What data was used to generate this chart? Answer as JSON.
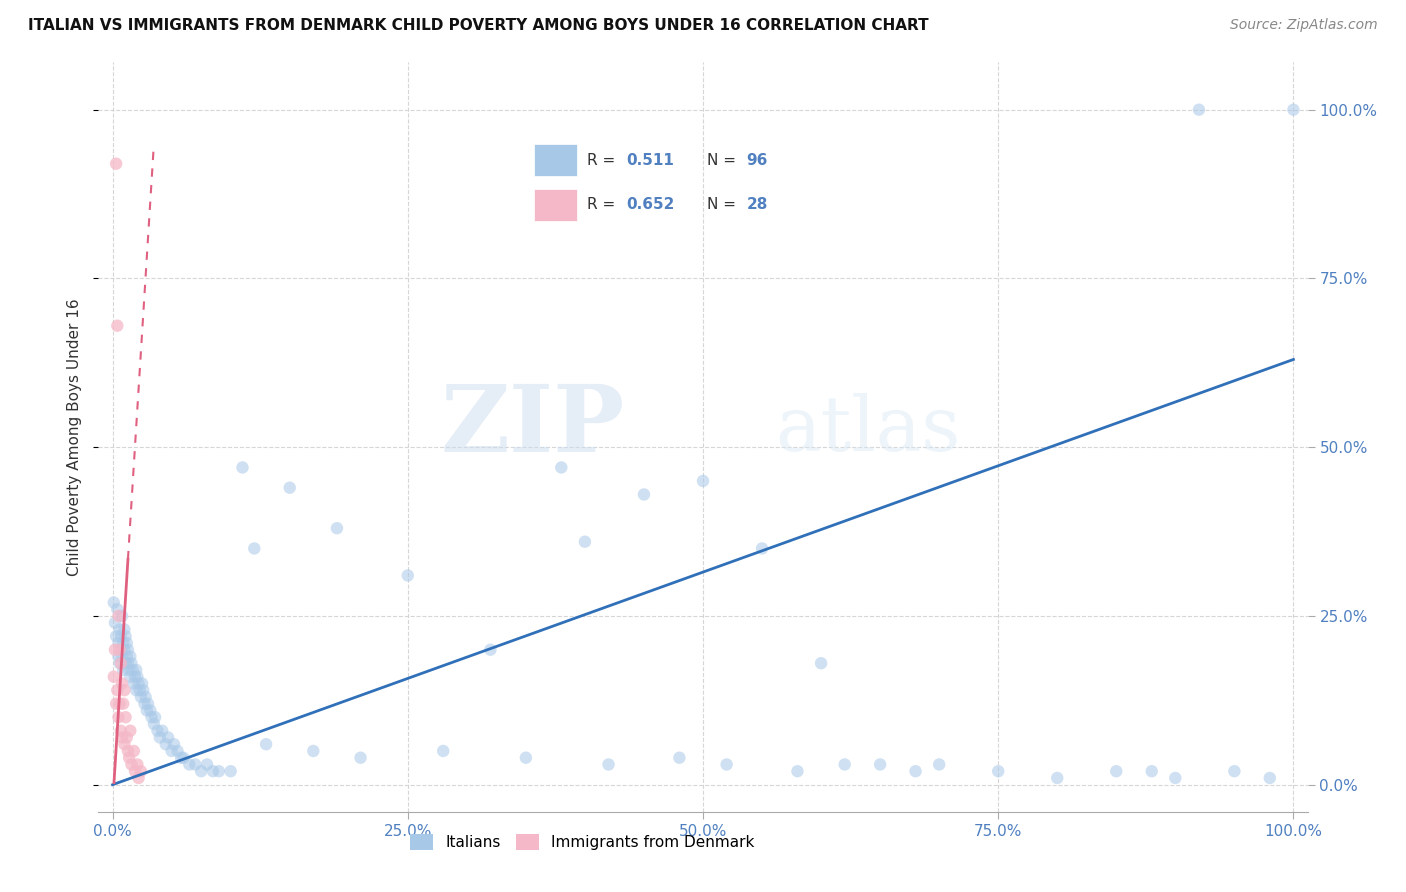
{
  "title": "ITALIAN VS IMMIGRANTS FROM DENMARK CHILD POVERTY AMONG BOYS UNDER 16 CORRELATION CHART",
  "source": "Source: ZipAtlas.com",
  "ylabel": "Child Poverty Among Boys Under 16",
  "r_italian": 0.511,
  "n_italian": 96,
  "r_denmark": 0.652,
  "n_denmark": 28,
  "xticks": [
    0.0,
    0.25,
    0.5,
    0.75,
    1.0
  ],
  "yticks": [
    0.0,
    0.25,
    0.5,
    0.75,
    1.0
  ],
  "xticklabels": [
    "0.0%",
    "25.0%",
    "50.0%",
    "75.0%",
    "100.0%"
  ],
  "yticklabels": [
    "0.0%",
    "25.0%",
    "50.0%",
    "75.0%",
    "100.0%"
  ],
  "color_italian": "#a8c8e8",
  "color_denmark": "#f4b8c8",
  "color_line_italian": "#3070b8",
  "color_line_denmark": "#e06080",
  "watermark_zip": "ZIP",
  "watermark_atlas": "atlas",
  "legend_box_color": "#e8e8f0",
  "tick_color": "#5080c0",
  "italian_line_slope": 0.63,
  "italian_line_intercept": 0.0,
  "denmark_line_slope": 28.0,
  "denmark_line_intercept": -0.03,
  "italy_x": [
    0.001,
    0.002,
    0.003,
    0.004,
    0.005,
    0.005,
    0.006,
    0.006,
    0.007,
    0.007,
    0.008,
    0.008,
    0.009,
    0.009,
    0.01,
    0.01,
    0.011,
    0.011,
    0.012,
    0.012,
    0.013,
    0.013,
    0.014,
    0.015,
    0.015,
    0.016,
    0.017,
    0.018,
    0.019,
    0.02,
    0.02,
    0.021,
    0.022,
    0.023,
    0.024,
    0.025,
    0.026,
    0.027,
    0.028,
    0.029,
    0.03,
    0.032,
    0.033,
    0.035,
    0.036,
    0.038,
    0.04,
    0.042,
    0.045,
    0.047,
    0.05,
    0.052,
    0.055,
    0.058,
    0.06,
    0.065,
    0.07,
    0.075,
    0.08,
    0.085,
    0.09,
    0.1,
    0.11,
    0.12,
    0.13,
    0.15,
    0.17,
    0.19,
    0.21,
    0.25,
    0.28,
    0.32,
    0.35,
    0.38,
    0.4,
    0.42,
    0.45,
    0.48,
    0.5,
    0.52,
    0.55,
    0.58,
    0.6,
    0.62,
    0.65,
    0.68,
    0.7,
    0.75,
    0.8,
    0.85,
    0.88,
    0.9,
    0.92,
    0.95,
    0.98,
    1.0
  ],
  "italy_y": [
    0.27,
    0.24,
    0.22,
    0.26,
    0.21,
    0.19,
    0.23,
    0.18,
    0.2,
    0.22,
    0.19,
    0.25,
    0.21,
    0.17,
    0.23,
    0.2,
    0.18,
    0.22,
    0.19,
    0.21,
    0.2,
    0.18,
    0.17,
    0.19,
    0.16,
    0.18,
    0.17,
    0.15,
    0.16,
    0.17,
    0.14,
    0.16,
    0.15,
    0.14,
    0.13,
    0.15,
    0.14,
    0.12,
    0.13,
    0.11,
    0.12,
    0.11,
    0.1,
    0.09,
    0.1,
    0.08,
    0.07,
    0.08,
    0.06,
    0.07,
    0.05,
    0.06,
    0.05,
    0.04,
    0.04,
    0.03,
    0.03,
    0.02,
    0.03,
    0.02,
    0.02,
    0.02,
    0.47,
    0.35,
    0.06,
    0.44,
    0.05,
    0.38,
    0.04,
    0.31,
    0.05,
    0.2,
    0.04,
    0.47,
    0.36,
    0.03,
    0.43,
    0.04,
    0.45,
    0.03,
    0.35,
    0.02,
    0.18,
    0.03,
    0.03,
    0.02,
    0.03,
    0.02,
    0.01,
    0.02,
    0.02,
    0.01,
    1.0,
    0.02,
    0.01,
    1.0
  ],
  "denmark_x": [
    0.001,
    0.002,
    0.003,
    0.003,
    0.004,
    0.004,
    0.005,
    0.005,
    0.006,
    0.006,
    0.007,
    0.007,
    0.008,
    0.008,
    0.009,
    0.01,
    0.01,
    0.011,
    0.012,
    0.013,
    0.014,
    0.015,
    0.016,
    0.018,
    0.019,
    0.021,
    0.022,
    0.024
  ],
  "denmark_y": [
    0.16,
    0.2,
    0.92,
    0.12,
    0.68,
    0.14,
    0.25,
    0.1,
    0.2,
    0.12,
    0.18,
    0.08,
    0.15,
    0.07,
    0.12,
    0.14,
    0.06,
    0.1,
    0.07,
    0.05,
    0.04,
    0.08,
    0.03,
    0.05,
    0.02,
    0.03,
    0.01,
    0.02
  ]
}
